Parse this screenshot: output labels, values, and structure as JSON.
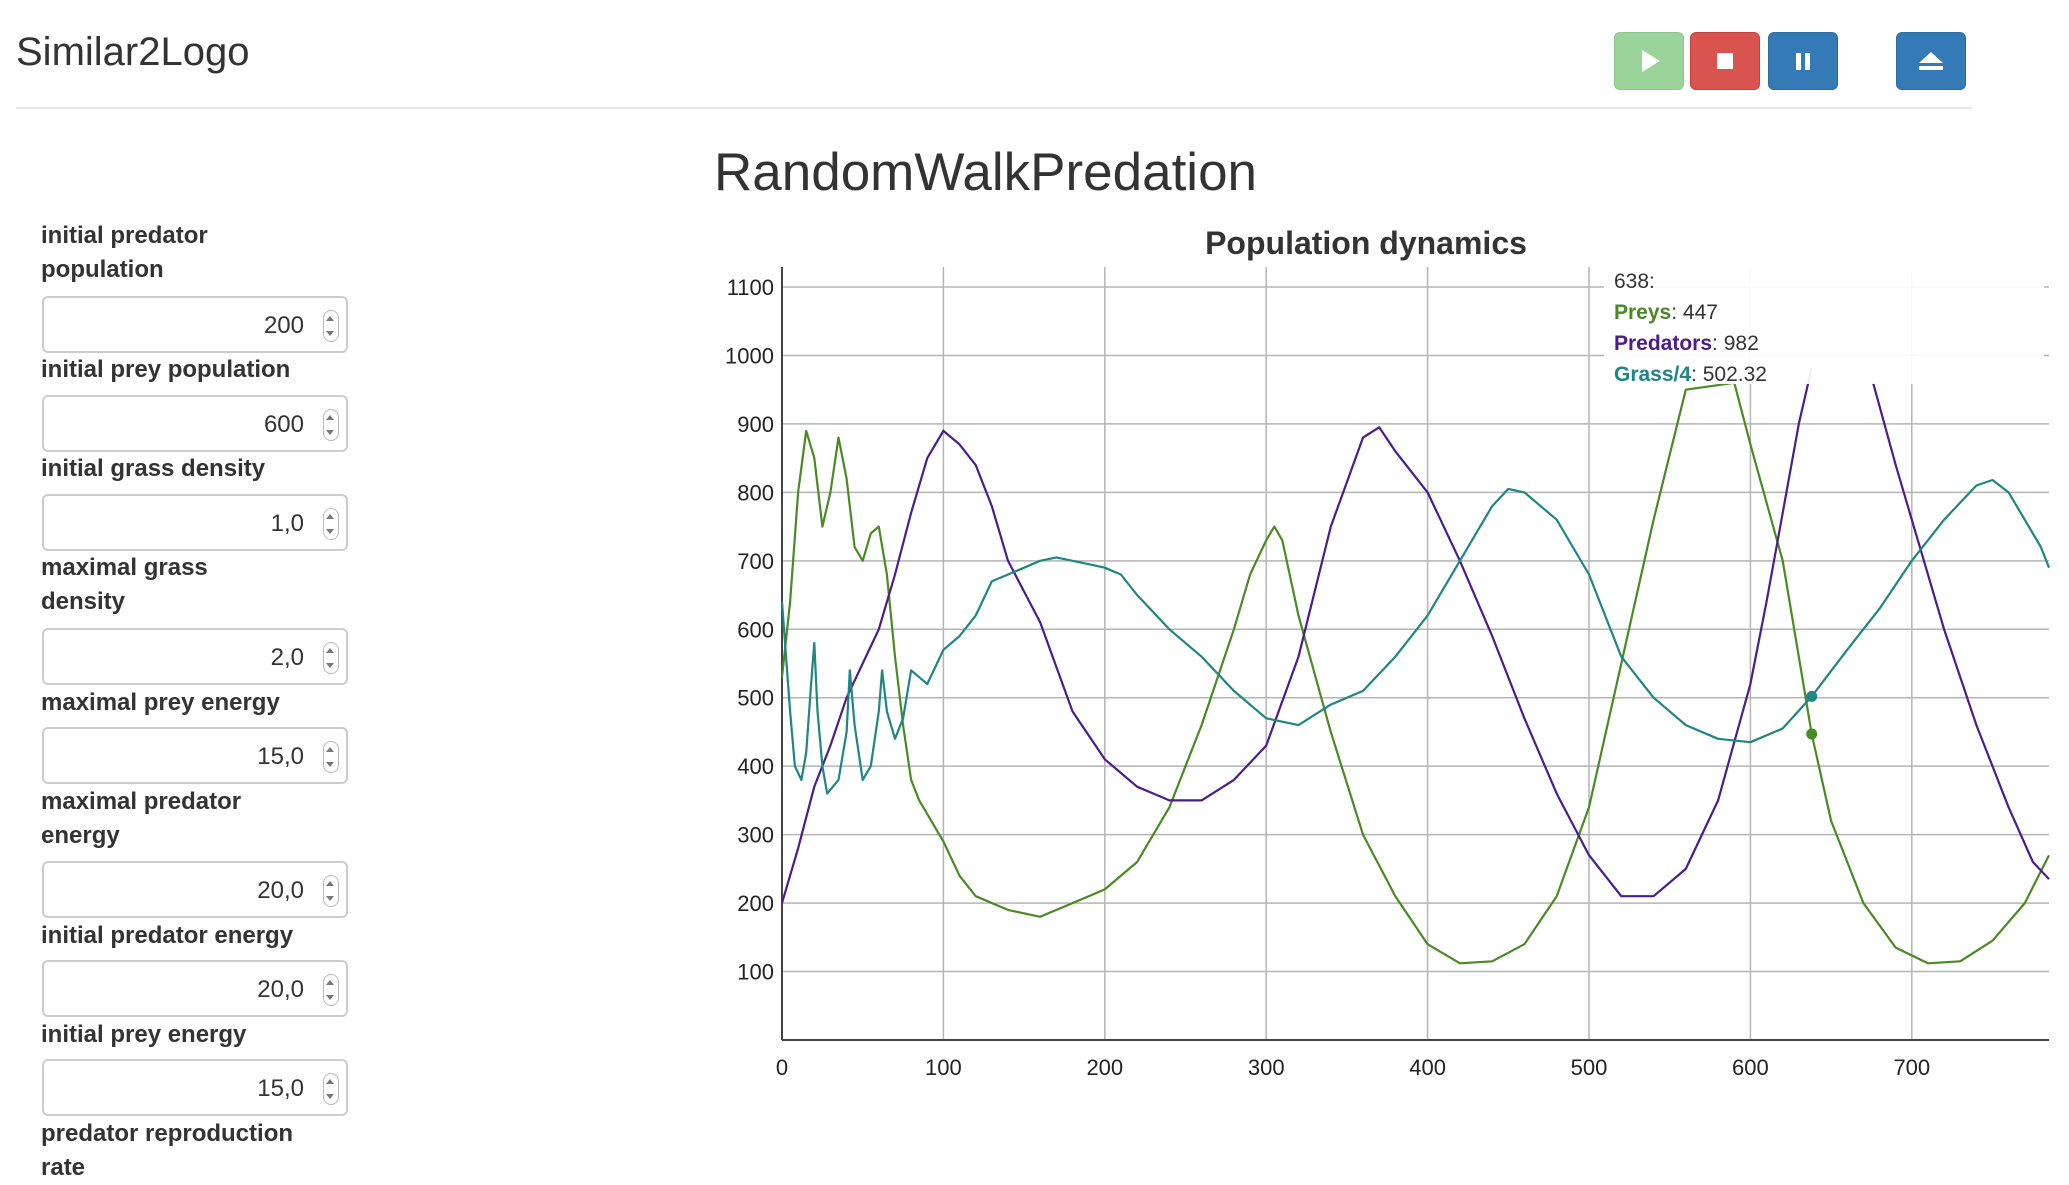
{
  "app": {
    "brand": "Similar2Logo"
  },
  "toolbar": {
    "play": {
      "icon": "play-icon",
      "color": "#9bd49b"
    },
    "stop": {
      "icon": "stop-icon",
      "color": "#d9534f"
    },
    "pause": {
      "icon": "pause-icon",
      "color": "#337ab7"
    },
    "eject": {
      "icon": "eject-icon",
      "color": "#337ab7"
    }
  },
  "simulation": {
    "title": "RandomWalkPredation"
  },
  "parameters": [
    {
      "label_lines": [
        "initial predator",
        "population"
      ],
      "value": "200"
    },
    {
      "label_lines": [
        "initial prey population"
      ],
      "value": "600"
    },
    {
      "label_lines": [
        "initial grass density"
      ],
      "value": "1,0"
    },
    {
      "label_lines": [
        "maximal grass",
        "density"
      ],
      "value": "2,0"
    },
    {
      "label_lines": [
        "maximal prey energy"
      ],
      "value": "15,0"
    },
    {
      "label_lines": [
        "maximal predator",
        "energy"
      ],
      "value": "20,0"
    },
    {
      "label_lines": [
        "initial predator energy"
      ],
      "value": "20,0"
    },
    {
      "label_lines": [
        "initial prey energy"
      ],
      "value": "15,0"
    },
    {
      "label_lines": [
        "predator reproduction",
        "rate"
      ],
      "value": null
    }
  ],
  "chart_data": {
    "type": "line",
    "title": "Population dynamics",
    "xlim": [
      0,
      785
    ],
    "ylim": [
      0,
      1100
    ],
    "x_ticks": [
      0,
      100,
      200,
      300,
      400,
      500,
      600,
      700
    ],
    "y_ticks": [
      100,
      200,
      300,
      400,
      500,
      600,
      700,
      800,
      900,
      1000,
      1100
    ],
    "grid": true,
    "series": [
      {
        "name": "Preys",
        "color": "#4a8a24",
        "points": [
          [
            0,
            530
          ],
          [
            5,
            640
          ],
          [
            10,
            800
          ],
          [
            15,
            890
          ],
          [
            20,
            850
          ],
          [
            25,
            750
          ],
          [
            30,
            800
          ],
          [
            35,
            880
          ],
          [
            40,
            820
          ],
          [
            45,
            720
          ],
          [
            50,
            700
          ],
          [
            55,
            740
          ],
          [
            60,
            750
          ],
          [
            65,
            680
          ],
          [
            70,
            560
          ],
          [
            75,
            460
          ],
          [
            80,
            380
          ],
          [
            85,
            350
          ],
          [
            90,
            330
          ],
          [
            100,
            290
          ],
          [
            110,
            240
          ],
          [
            120,
            210
          ],
          [
            140,
            190
          ],
          [
            160,
            180
          ],
          [
            170,
            190
          ],
          [
            180,
            200
          ],
          [
            200,
            220
          ],
          [
            220,
            260
          ],
          [
            240,
            340
          ],
          [
            260,
            460
          ],
          [
            280,
            600
          ],
          [
            290,
            680
          ],
          [
            300,
            730
          ],
          [
            305,
            750
          ],
          [
            310,
            730
          ],
          [
            320,
            620
          ],
          [
            340,
            450
          ],
          [
            360,
            300
          ],
          [
            380,
            210
          ],
          [
            400,
            140
          ],
          [
            420,
            112
          ],
          [
            440,
            115
          ],
          [
            460,
            140
          ],
          [
            480,
            210
          ],
          [
            500,
            340
          ],
          [
            520,
            550
          ],
          [
            540,
            760
          ],
          [
            560,
            950
          ],
          [
            590,
            960
          ],
          [
            600,
            870
          ],
          [
            620,
            700
          ],
          [
            630,
            560
          ],
          [
            638,
            447
          ],
          [
            650,
            320
          ],
          [
            670,
            200
          ],
          [
            690,
            135
          ],
          [
            710,
            112
          ],
          [
            730,
            115
          ],
          [
            750,
            145
          ],
          [
            770,
            200
          ],
          [
            785,
            270
          ]
        ]
      },
      {
        "name": "Predators",
        "color": "#4b1c8a",
        "points": [
          [
            0,
            200
          ],
          [
            10,
            280
          ],
          [
            20,
            370
          ],
          [
            30,
            430
          ],
          [
            40,
            500
          ],
          [
            50,
            550
          ],
          [
            60,
            600
          ],
          [
            70,
            680
          ],
          [
            80,
            770
          ],
          [
            90,
            850
          ],
          [
            100,
            890
          ],
          [
            110,
            870
          ],
          [
            120,
            840
          ],
          [
            130,
            780
          ],
          [
            140,
            700
          ],
          [
            160,
            610
          ],
          [
            180,
            480
          ],
          [
            200,
            410
          ],
          [
            220,
            370
          ],
          [
            240,
            350
          ],
          [
            260,
            350
          ],
          [
            280,
            380
          ],
          [
            300,
            430
          ],
          [
            320,
            560
          ],
          [
            340,
            750
          ],
          [
            360,
            880
          ],
          [
            370,
            895
          ],
          [
            380,
            860
          ],
          [
            400,
            800
          ],
          [
            420,
            700
          ],
          [
            440,
            590
          ],
          [
            460,
            470
          ],
          [
            480,
            360
          ],
          [
            500,
            270
          ],
          [
            520,
            210
          ],
          [
            540,
            210
          ],
          [
            560,
            250
          ],
          [
            580,
            350
          ],
          [
            600,
            520
          ],
          [
            610,
            640
          ],
          [
            620,
            770
          ],
          [
            630,
            900
          ],
          [
            638,
            982
          ]
        ],
        "segments_after_gap": [
          [
            [
              676,
              960
            ],
            [
              690,
              840
            ],
            [
              700,
              760
            ],
            [
              720,
              600
            ],
            [
              740,
              460
            ],
            [
              760,
              340
            ],
            [
              775,
              260
            ],
            [
              785,
              235
            ]
          ]
        ]
      },
      {
        "name": "Grass/4",
        "color": "#1f8585",
        "points": [
          [
            0,
            640
          ],
          [
            5,
            480
          ],
          [
            8,
            400
          ],
          [
            12,
            380
          ],
          [
            15,
            420
          ],
          [
            18,
            520
          ],
          [
            20,
            580
          ],
          [
            22,
            480
          ],
          [
            25,
            400
          ],
          [
            28,
            360
          ],
          [
            35,
            380
          ],
          [
            40,
            450
          ],
          [
            42,
            540
          ],
          [
            45,
            460
          ],
          [
            50,
            380
          ],
          [
            55,
            400
          ],
          [
            60,
            480
          ],
          [
            62,
            540
          ],
          [
            65,
            480
          ],
          [
            70,
            440
          ],
          [
            75,
            470
          ],
          [
            80,
            540
          ],
          [
            85,
            530
          ],
          [
            90,
            520
          ],
          [
            100,
            570
          ],
          [
            110,
            590
          ],
          [
            120,
            620
          ],
          [
            130,
            670
          ],
          [
            140,
            680
          ],
          [
            150,
            690
          ],
          [
            160,
            700
          ],
          [
            170,
            705
          ],
          [
            180,
            700
          ],
          [
            190,
            695
          ],
          [
            200,
            690
          ],
          [
            210,
            680
          ],
          [
            220,
            650
          ],
          [
            240,
            600
          ],
          [
            260,
            560
          ],
          [
            280,
            510
          ],
          [
            300,
            470
          ],
          [
            320,
            460
          ],
          [
            340,
            490
          ],
          [
            360,
            510
          ],
          [
            380,
            560
          ],
          [
            400,
            620
          ],
          [
            420,
            700
          ],
          [
            440,
            780
          ],
          [
            450,
            805
          ],
          [
            460,
            800
          ],
          [
            480,
            760
          ],
          [
            500,
            680
          ],
          [
            520,
            560
          ],
          [
            540,
            500
          ],
          [
            560,
            460
          ],
          [
            580,
            440
          ],
          [
            600,
            435
          ],
          [
            620,
            455
          ],
          [
            638,
            502
          ],
          [
            660,
            570
          ],
          [
            680,
            630
          ],
          [
            700,
            700
          ],
          [
            720,
            760
          ],
          [
            740,
            810
          ],
          [
            750,
            818
          ],
          [
            760,
            800
          ],
          [
            780,
            720
          ],
          [
            785,
            690
          ]
        ]
      }
    ],
    "tooltip": {
      "x_label": "638:",
      "entries": [
        {
          "name": "Preys",
          "value": "447",
          "color": "#4a8a24"
        },
        {
          "name": "Predators",
          "value": "982",
          "color": "#4b1c8a"
        },
        {
          "name": "Grass/4",
          "value": "502.32",
          "color": "#1f8585"
        }
      ],
      "markers": [
        {
          "series": "Preys",
          "x": 638,
          "y": 447
        },
        {
          "series": "Grass/4",
          "x": 638,
          "y": 502
        }
      ]
    }
  }
}
